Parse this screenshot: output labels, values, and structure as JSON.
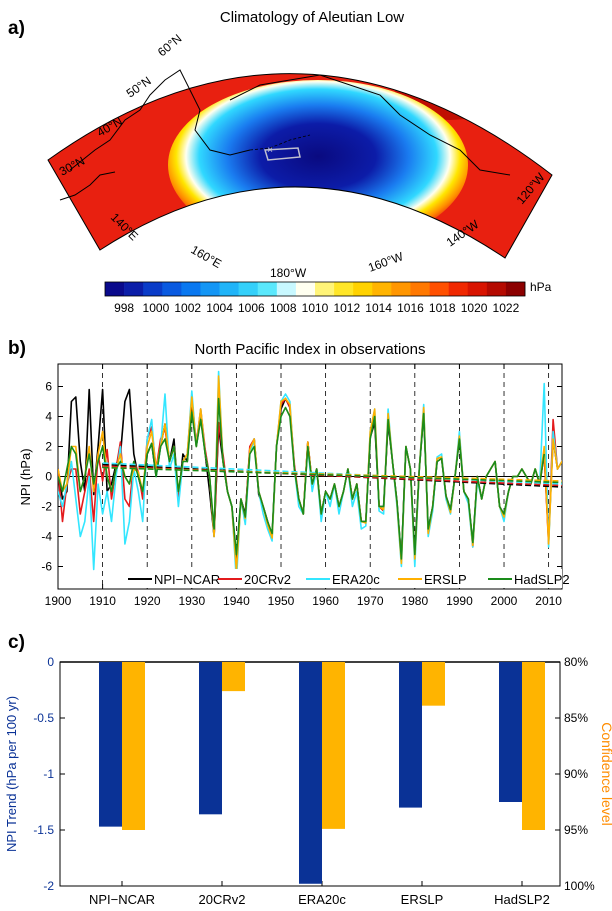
{
  "panel_a": {
    "label": "a)",
    "title": "Climatology of Aleutian Low",
    "lat_labels": [
      "60°N",
      "50°N",
      "40°N",
      "30°N"
    ],
    "lon_labels": [
      "140°E",
      "160°E",
      "180°W",
      "160°W",
      "140°W",
      "120°W"
    ],
    "colorbar": {
      "unit": "hPa",
      "ticks": [
        "998",
        "1000",
        "1002",
        "1004",
        "1006",
        "1008",
        "1010",
        "1012",
        "1014",
        "1016",
        "1018",
        "1020",
        "1022"
      ],
      "colors": [
        "#0a0a8c",
        "#0b1ea8",
        "#0a3cc8",
        "#0a5ae0",
        "#0a78f0",
        "#1496f5",
        "#20b4f8",
        "#34d0fa",
        "#5ae8fc",
        "#c8f8ff",
        "#fffff0",
        "#fff478",
        "#ffe628",
        "#ffd200",
        "#ffb400",
        "#ff9600",
        "#ff7800",
        "#ff5000",
        "#f02800",
        "#d81400",
        "#b40a00",
        "#8c0000"
      ]
    },
    "map_colors": {
      "red": "#e82010",
      "deep_red": "#b80c00",
      "orange": "#ff8c00",
      "yellow": "#ffe600",
      "light_blue": "#30d8ff",
      "mid_blue": "#1a7cf0",
      "deep_blue": "#0c1ca8",
      "darkest": "#0a0a80"
    }
  },
  "panel_b": {
    "label": "b)",
    "chart_data": {
      "type": "line",
      "title": "North Pacific Index in observations",
      "ylabel": "NPI (hPa)",
      "xlabel": "",
      "xlim": [
        1900,
        2013
      ],
      "ylim": [
        -7.5,
        7.5
      ],
      "xticks": [
        1900,
        1910,
        1920,
        1930,
        1940,
        1950,
        1960,
        1970,
        1980,
        1990,
        2000,
        2010
      ],
      "yticks": [
        -6,
        -4,
        -2,
        0,
        2,
        4,
        6
      ],
      "x_start": 1900,
      "series": [
        {
          "name": "NPI−NCAR",
          "color": "#000000",
          "start": 1900,
          "values": [
            0.5,
            -1.5,
            -1,
            5,
            5.3,
            1,
            -1,
            5.8,
            -1.2,
            2,
            5.8,
            -1,
            -0.5,
            0.8,
            1.4,
            5,
            5.8,
            1.5,
            0,
            -1.2,
            1.5,
            2.2,
            0,
            2,
            3.5,
            1,
            2.5,
            -1.5,
            1.5,
            1,
            5,
            2,
            4,
            1.5,
            -1,
            -4,
            3.3,
            1,
            -1,
            -2,
            -5.5,
            -1.5,
            -2.5,
            1.8,
            2.5,
            -1.2,
            -2,
            -3,
            -4,
            2,
            4.5,
            5.2,
            4.6,
            0.5,
            -1.5,
            -2.5,
            2.3,
            -0.5,
            0.5,
            -2.5,
            -1,
            -1.5,
            -0.5,
            -2,
            -1,
            0.5,
            -1.5,
            -0.5,
            -3,
            -3,
            2.6,
            3.6,
            -2,
            -2,
            3.6,
            1,
            -1.7,
            -5.5,
            2,
            0.5,
            -5.2,
            0.5,
            4.2,
            -3.5,
            -2,
            1,
            1.2,
            -1.3,
            -2.2,
            0,
            2.5,
            -1,
            -1.5,
            -4.5,
            0,
            -1.5,
            0,
            0.5,
            1,
            -2,
            -2.6,
            -1,
            0,
            0,
            0.5,
            0,
            -0.5,
            0.5,
            -0.5,
            1.5,
            -4.2,
            2.5,
            0.5,
            1,
            0.5
          ]
        },
        {
          "name": "20CRv2",
          "color": "#e31a1c",
          "start": 1900,
          "values": [
            0.5,
            -3,
            -0.5,
            0.5,
            0.5,
            -2.5,
            -1,
            0.5,
            -3,
            1.5,
            -0.3,
            1.8,
            -1.5,
            0.5,
            2.3,
            -1.5,
            -2,
            1,
            0.3,
            -1.5,
            2.5,
            3.3,
            0.5,
            2.5,
            3.2,
            1,
            2,
            -1.5,
            1,
            1.5,
            5.3,
            2.2,
            4.5,
            1.8,
            0,
            -4,
            3.6,
            1.5,
            -1,
            -2,
            -6.4,
            -1.5,
            -2.7,
            2,
            2.5,
            -1,
            -2,
            -3,
            -4,
            2,
            4.8,
            5.2,
            4.6,
            0.8,
            -1.5,
            -2.5,
            2.3,
            -0.5,
            0.5,
            -2.5,
            -1,
            -1.5,
            -0.5,
            -2,
            -1,
            0.5,
            -1.5,
            -0.5,
            -3,
            -3,
            2.8,
            4,
            -2,
            -2.3,
            4,
            1,
            -1.8,
            -5.6,
            2,
            0.5,
            -5.5,
            0.5,
            4.5,
            -3.7,
            -2,
            1.2,
            1.3,
            -1.3,
            -2.4,
            0,
            2.7,
            -1,
            -1.5,
            -4.7,
            0,
            -1.5,
            0,
            0.5,
            1,
            -2,
            -2.6,
            -1,
            0,
            0,
            0.5,
            0,
            -0.5,
            0.5,
            -0.5,
            1.5,
            -4.5,
            3.8,
            0.5,
            1,
            0.5
          ]
        },
        {
          "name": "ERA20c",
          "color": "#33e6ff",
          "start": 1900,
          "values": [
            -1,
            -2,
            -0.5,
            1,
            -1.5,
            -4,
            -3,
            0,
            -6.2,
            -0.5,
            -2.5,
            -1,
            -3,
            0,
            2,
            -4.5,
            -3,
            0.5,
            -1,
            -3,
            2.5,
            3.8,
            0,
            2,
            5.5,
            0.5,
            1.5,
            -2,
            1,
            1.5,
            5.7,
            2,
            4.5,
            1.5,
            0,
            -4,
            7,
            1,
            -1,
            -2,
            -7,
            -1.5,
            -3.2,
            1.5,
            2.5,
            -1,
            -2.5,
            -3.5,
            -4.3,
            2,
            5,
            5.5,
            5,
            0.5,
            -2,
            -2.5,
            2,
            -1,
            0.5,
            -3,
            -1,
            -2,
            -0.5,
            -2.5,
            -1,
            0.5,
            -2,
            -1,
            -3.5,
            -3.3,
            3,
            4.5,
            -2.3,
            -2.5,
            4.5,
            1,
            -2,
            -6,
            2,
            0.5,
            -6,
            0.5,
            4.8,
            -4,
            -2.3,
            1.3,
            1.5,
            -1.5,
            -2.5,
            0,
            3,
            -1,
            -1.8,
            -4.7,
            -0.3,
            -1.5,
            0,
            0.5,
            1,
            -2,
            -3,
            -1,
            0,
            0,
            0.5,
            0,
            -0.5,
            0.5,
            -0.5,
            6.2,
            -4.7,
            3,
            0.5,
            1,
            0.5
          ]
        },
        {
          "name": "ERSLP",
          "color": "#ffb000",
          "start": 1900,
          "values": [
            0.5,
            -1,
            -0.5,
            2,
            2,
            -1,
            0,
            2,
            -1,
            1.5,
            3,
            0,
            -1,
            0.5,
            1.5,
            0,
            -0.5,
            0.5,
            0.3,
            -1,
            2,
            3,
            0.5,
            2,
            3.5,
            1,
            2,
            -1,
            1,
            1.5,
            5.3,
            2,
            4.5,
            1.5,
            0,
            -4,
            6.7,
            1,
            -1,
            -2,
            -6.3,
            -1.5,
            -2.8,
            1.8,
            2.5,
            -1,
            -2,
            -3.2,
            -4.1,
            2,
            5,
            5.2,
            4.8,
            0.5,
            -1.5,
            -2.5,
            2.3,
            -0.5,
            0.5,
            -2.5,
            -1,
            -1.5,
            -0.5,
            -2,
            -1,
            0.5,
            -1.5,
            -0.5,
            -3,
            -3.1,
            3,
            4.5,
            -2,
            -2.2,
            4.2,
            1,
            -1.8,
            -5.8,
            2,
            0.5,
            -5.5,
            0.5,
            4.6,
            -3.8,
            -2,
            1.2,
            1.3,
            -1.3,
            -2.4,
            0,
            2.7,
            -1,
            -1.5,
            -4.6,
            0,
            -1.5,
            0,
            0.5,
            1,
            -2,
            -2.7,
            -1,
            0,
            0,
            0.5,
            0,
            -0.5,
            0.5,
            -0.5,
            2,
            -4.5,
            2.5,
            0.5,
            1,
            0.5
          ]
        },
        {
          "name": "HadSLP2",
          "color": "#1a8c1a",
          "start": 1900,
          "values": [
            0,
            -1,
            0.5,
            2,
            1.5,
            -1,
            0,
            1.5,
            -0.5,
            1,
            2,
            0,
            -1,
            0.5,
            1,
            0,
            -0.5,
            1,
            0,
            -1,
            1.5,
            2.2,
            0,
            2,
            2.5,
            1,
            2,
            -1,
            1,
            1,
            4.3,
            2,
            3.8,
            1.5,
            0,
            -3.5,
            5.2,
            1,
            -1,
            -2,
            -5.2,
            -1.5,
            -2.7,
            1.5,
            2,
            -1,
            -2,
            -3,
            -3.8,
            2,
            4,
            4.6,
            4,
            0.5,
            -1.5,
            -2.5,
            2,
            -0.5,
            0.5,
            -2.5,
            -1,
            -1.5,
            -0.5,
            -2,
            -1,
            0.5,
            -1.5,
            -0.5,
            -3,
            -3,
            2.5,
            4,
            -2,
            -2,
            3.8,
            1,
            -1.7,
            -5.5,
            2,
            0.5,
            -5.2,
            0.5,
            4.2,
            -3.5,
            -2,
            1,
            1.2,
            -1.3,
            -2.2,
            0,
            2.5,
            -1,
            -1.5,
            -4.4,
            0,
            -1.5,
            0,
            0.5,
            1,
            -2,
            -2.5,
            -1,
            0,
            0,
            0.5,
            0,
            -0.5,
            0.5,
            -0.5,
            1.5
          ]
        }
      ],
      "trend_lines": [
        {
          "color": "#000000",
          "x": [
            1910,
            2013
          ],
          "y": [
            0.8,
            -0.7
          ]
        },
        {
          "color": "#e31a1c",
          "x": [
            1910,
            2013
          ],
          "y": [
            0.7,
            -0.6
          ]
        },
        {
          "color": "#33e6ff",
          "x": [
            1910,
            2013
          ],
          "y": [
            0.9,
            -0.5
          ]
        },
        {
          "color": "#ffb000",
          "x": [
            1910,
            2013
          ],
          "y": [
            0.6,
            -0.3
          ]
        },
        {
          "color": "#1a8c1a",
          "x": [
            1910,
            2013
          ],
          "y": [
            0.6,
            -0.4
          ]
        }
      ],
      "legend_placement": "bottom"
    }
  },
  "panel_c": {
    "label": "c)",
    "chart_data": {
      "type": "bar",
      "categories": [
        "NPI−NCAR",
        "20CRv2",
        "ERA20c",
        "ERSLP",
        "HadSLP2"
      ],
      "series": [
        {
          "name": "NPI Trend",
          "color": "#0a3296",
          "values": [
            -1.47,
            -1.36,
            -1.98,
            -1.3,
            -1.25
          ]
        },
        {
          "name": "Confidence level",
          "color": "#ffb400",
          "values": [
            95,
            82.6,
            94.9,
            83.9,
            95
          ]
        }
      ],
      "ylabel": "NPI Trend (hPa per 100 yr)",
      "ylabel_color": "#0a3296",
      "ylim": [
        -2,
        0
      ],
      "yticks": [
        "0",
        "-0.5",
        "-1",
        "-1.5",
        "-2"
      ],
      "ylabel2": "Confidence level",
      "ylabel2_color": "#ff8c00",
      "ylim2": [
        80,
        100
      ],
      "yticks2": [
        "80%",
        "85%",
        "90%",
        "95%",
        "100%"
      ]
    }
  }
}
